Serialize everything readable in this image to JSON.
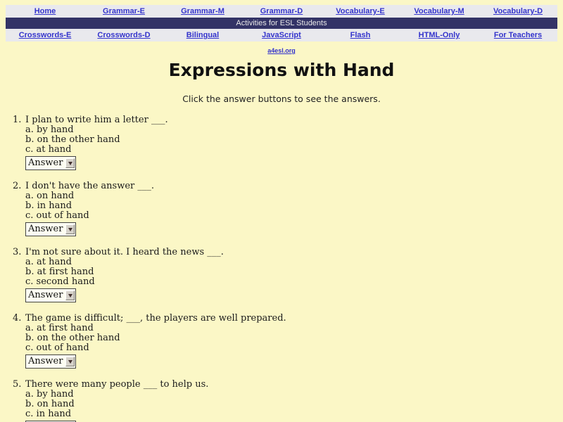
{
  "nav": {
    "top_links": [
      "Home",
      "Grammar-E",
      "Grammar-M",
      "Grammar-D",
      "Vocabulary-E",
      "Vocabulary-M",
      "Vocabulary-D"
    ],
    "banner": "Activities for ESL Students",
    "bottom_links": [
      "Crosswords-E",
      "Crosswords-D",
      "Bilingual",
      "JavaScript",
      "Flash",
      "HTML-Only",
      "For Teachers"
    ],
    "site_link": "a4esl.org"
  },
  "page": {
    "title": "Expressions with Hand",
    "subtitle": "Click the answer buttons to see the answers."
  },
  "controls": {
    "answer_label": "Answer"
  },
  "questions": [
    {
      "number": "1.",
      "text": "I plan to write him a letter ___.",
      "options": [
        "a. by hand",
        "b. on the other hand",
        "c. at hand"
      ]
    },
    {
      "number": "2.",
      "text": "I don't have the answer ___.",
      "options": [
        "a. on hand",
        "b. in hand",
        "c. out of hand"
      ]
    },
    {
      "number": "3.",
      "text": "I'm not sure about it. I heard the news ___.",
      "options": [
        "a. at hand",
        "b. at first hand",
        "c. second hand"
      ]
    },
    {
      "number": "4.",
      "text": "The game is difficult; ___, the players are well prepared.",
      "options": [
        "a. at first hand",
        "b. on the other hand",
        "c. out of hand"
      ]
    },
    {
      "number": "5.",
      "text": "There were many people ___ to help us.",
      "options": [
        "a. by hand",
        "b. on hand",
        "c. in hand"
      ]
    }
  ],
  "colors": {
    "page_background": "#FBF7C6",
    "nav_band": "#E9E9ED",
    "banner_background": "#333366",
    "banner_text": "#E8E8E8",
    "link": "#3333CC",
    "body_text": "#1A1A1A"
  }
}
